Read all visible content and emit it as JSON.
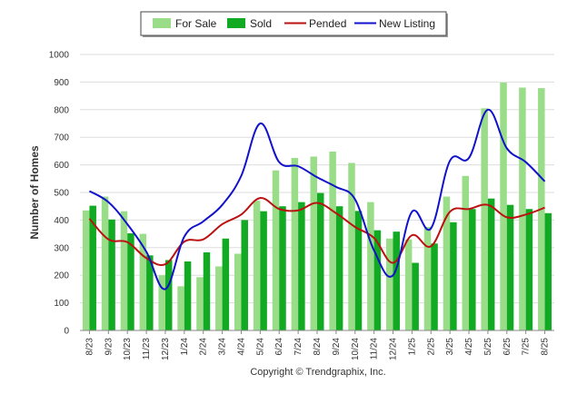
{
  "chart_data": {
    "type": "bar",
    "ylabel": "Number of Homes",
    "ylim": [
      0,
      1000
    ],
    "yticks": [
      0,
      100,
      200,
      300,
      400,
      500,
      600,
      700,
      800,
      900,
      1000
    ],
    "grid": true,
    "legend_placement": "top",
    "categories": [
      "8/23",
      "9/23",
      "10/23",
      "11/23",
      "12/23",
      "1/24",
      "2/24",
      "3/24",
      "4/24",
      "5/24",
      "6/24",
      "7/24",
      "8/24",
      "9/24",
      "10/24",
      "11/24",
      "12/24",
      "1/25",
      "2/25",
      "3/25",
      "4/25",
      "5/25",
      "6/25",
      "7/25",
      "8/25"
    ],
    "series": [
      {
        "name": "For Sale",
        "kind": "bar",
        "color": "#99dd88",
        "values": [
          435,
          485,
          432,
          350,
          200,
          160,
          193,
          232,
          278,
          470,
          580,
          625,
          630,
          648,
          607,
          465,
          333,
          330,
          375,
          485,
          560,
          805,
          898,
          880,
          878
        ]
      },
      {
        "name": "Sold",
        "kind": "bar",
        "color": "#11aa22",
        "values": [
          452,
          402,
          352,
          272,
          255,
          250,
          283,
          333,
          400,
          432,
          450,
          465,
          498,
          450,
          433,
          363,
          358,
          245,
          315,
          392,
          440,
          478,
          455,
          440,
          425
        ]
      },
      {
        "name": "Pended",
        "kind": "line",
        "color": "#bb1111",
        "values": [
          405,
          330,
          320,
          262,
          240,
          322,
          330,
          385,
          420,
          480,
          440,
          435,
          462,
          425,
          375,
          335,
          245,
          345,
          305,
          430,
          440,
          455,
          410,
          420,
          445
        ]
      },
      {
        "name": "New Listing",
        "kind": "line",
        "color": "#1111cc",
        "values": [
          505,
          465,
          385,
          285,
          150,
          340,
          395,
          455,
          560,
          750,
          610,
          595,
          555,
          520,
          475,
          290,
          200,
          430,
          370,
          615,
          625,
          800,
          660,
          610,
          540
        ]
      }
    ]
  },
  "copyright": "Copyright © Trendgraphix, Inc."
}
